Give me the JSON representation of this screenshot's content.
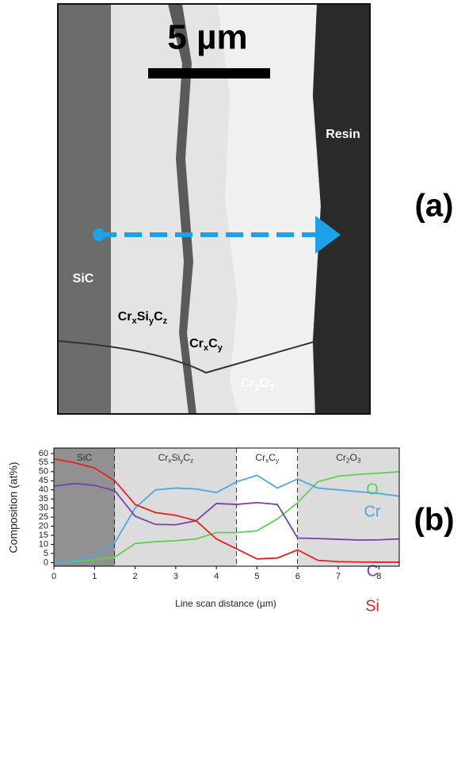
{
  "panel_a": {
    "scale_bar": "5 µm",
    "tag": "(a)",
    "labels": [
      {
        "parts": [
          "Resin"
        ]
      },
      {
        "parts": [
          "SiC"
        ]
      },
      {
        "parts": [
          "Cr",
          "x",
          "Si",
          "y",
          "C",
          "z"
        ]
      },
      {
        "parts": [
          "Cr",
          "x",
          "C",
          "y"
        ]
      },
      {
        "parts": [
          "Cr",
          "2",
          "O",
          "3"
        ]
      }
    ]
  },
  "chart_data": {
    "type": "line",
    "panel_label": "(b)",
    "x_label": "Line scan distance (µm)",
    "y_label": "Composition (at%)",
    "x": [
      0,
      0.5,
      1,
      1.5,
      2,
      2.5,
      3,
      3.5,
      4,
      4.5,
      5,
      5.5,
      6,
      6.5,
      7,
      7.5,
      8,
      8.5
    ],
    "series": [
      {
        "name": "O",
        "color": "#5ccf55",
        "values": [
          0,
          0.5,
          1.5,
          3,
          10.5,
          11.5,
          12,
          13,
          16.5,
          16.5,
          17.5,
          24,
          33,
          44.5,
          47.5,
          48.5,
          49.2,
          50
        ]
      },
      {
        "name": "Cr",
        "color": "#4fa6e0",
        "values": [
          0,
          1,
          3.5,
          11,
          30,
          40,
          41,
          40.5,
          38.5,
          44.5,
          48,
          41,
          46,
          41,
          40,
          39,
          38,
          36.5
        ]
      },
      {
        "name": "C",
        "color": "#7a3fb0",
        "values": [
          42,
          43.5,
          42.5,
          39.5,
          25.5,
          21,
          20.8,
          23,
          32.5,
          32,
          33,
          32,
          13.5,
          13.2,
          12.8,
          12.4,
          12.5,
          13
        ]
      },
      {
        "name": "Si",
        "color": "#e8201e",
        "values": [
          57,
          55,
          52,
          45,
          32,
          27.5,
          26,
          23,
          13,
          7.5,
          2,
          2.5,
          7,
          1.2,
          0.5,
          0.3,
          0.2,
          0.2
        ]
      }
    ],
    "regions": [
      {
        "parts": [
          "SiC"
        ],
        "start": 0,
        "end": 1.5,
        "color": "#919191"
      },
      {
        "parts": [
          "Cr",
          "x",
          "Si",
          "y",
          "C",
          "z"
        ],
        "start": 1.5,
        "end": 4.5,
        "color": "#dcdcdc"
      },
      {
        "parts": [
          "Cr",
          "x",
          "C",
          "y"
        ],
        "start": 4.5,
        "end": 6,
        "color": "#ffffff"
      },
      {
        "parts": [
          "Cr",
          "2",
          "O",
          "3"
        ],
        "start": 6,
        "end": 8.5,
        "color": "#dcdcdc"
      }
    ],
    "xlim": [
      0,
      8.5
    ],
    "ylim": [
      -2,
      63
    ],
    "xticks": [
      0,
      1,
      2,
      3,
      4,
      5,
      6,
      7,
      8
    ],
    "yticks": [
      0,
      5,
      10,
      15,
      20,
      25,
      30,
      35,
      40,
      45,
      50,
      55,
      60
    ]
  }
}
